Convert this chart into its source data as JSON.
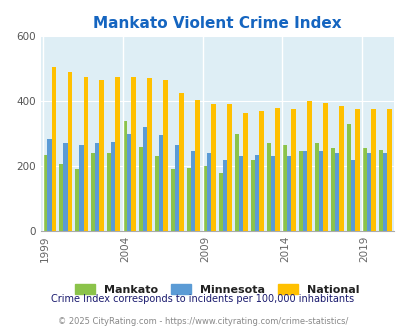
{
  "title": "Mankato Violent Crime Index",
  "years": [
    1999,
    2000,
    2001,
    2002,
    2003,
    2004,
    2005,
    2006,
    2007,
    2008,
    2009,
    2010,
    2011,
    2012,
    2013,
    2014,
    2015,
    2016,
    2017,
    2018,
    2019,
    2020
  ],
  "mankato": [
    235,
    205,
    190,
    240,
    240,
    340,
    260,
    230,
    190,
    195,
    200,
    180,
    300,
    220,
    270,
    265,
    245,
    270,
    255,
    330,
    255,
    250
  ],
  "minnesota": [
    285,
    270,
    265,
    270,
    275,
    300,
    320,
    295,
    265,
    245,
    240,
    220,
    230,
    235,
    230,
    230,
    245,
    245,
    240,
    220,
    240,
    240
  ],
  "national": [
    505,
    490,
    475,
    465,
    475,
    475,
    470,
    465,
    425,
    405,
    390,
    390,
    365,
    370,
    380,
    375,
    400,
    395,
    385,
    375,
    375,
    375
  ],
  "mankato_color": "#8bc34a",
  "minnesota_color": "#5b9bd5",
  "national_color": "#ffc000",
  "bg_color": "#deeef5",
  "title_color": "#1565c0",
  "ylabel_max": 600,
  "yticks": [
    0,
    200,
    400,
    600
  ],
  "subtitle": "Crime Index corresponds to incidents per 100,000 inhabitants",
  "footer": "© 2025 CityRating.com - https://www.cityrating.com/crime-statistics/",
  "subtitle_color": "#1a1a6e",
  "footer_color": "#888888",
  "xtick_labels": [
    "1999",
    "2004",
    "2009",
    "2014",
    "2019"
  ],
  "xtick_positions": [
    0,
    5,
    10,
    15,
    20
  ],
  "legend_labels": [
    "Mankato",
    "Minnesota",
    "National"
  ]
}
